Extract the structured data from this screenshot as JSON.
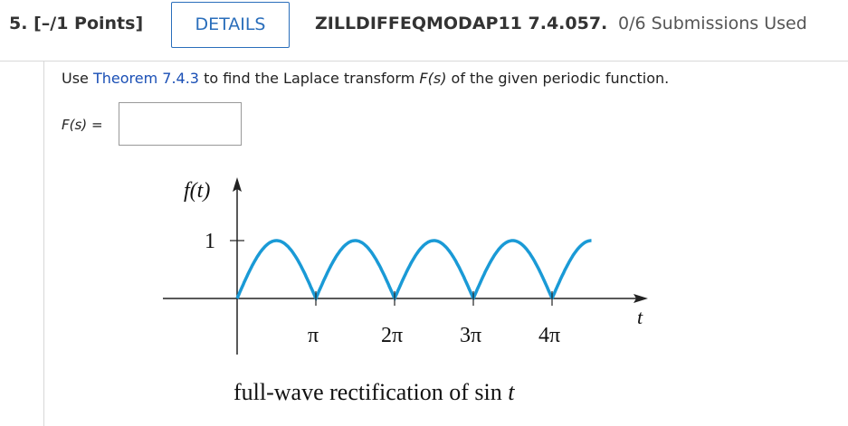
{
  "header": {
    "number": "5.",
    "points": "[–/1 Points]",
    "details": "DETAILS",
    "code": "ZILLDIFFEQMODAP11 7.4.057.",
    "submissions": "0/6 Submissions Used"
  },
  "question": {
    "before": "Use ",
    "link": "Theorem 7.4.3",
    "middle": " to find the Laplace transform ",
    "function": "F(s)",
    "after": " of the given periodic function."
  },
  "answer": {
    "label": "F(s)",
    "equals": "="
  },
  "figure": {
    "y_label": "f(t)",
    "y_tick": "1",
    "x_label": "t",
    "x_ticks": [
      "π",
      "2π",
      "3π",
      "4π"
    ],
    "caption": "full-wave rectification of sin ",
    "caption_var": "t"
  }
}
